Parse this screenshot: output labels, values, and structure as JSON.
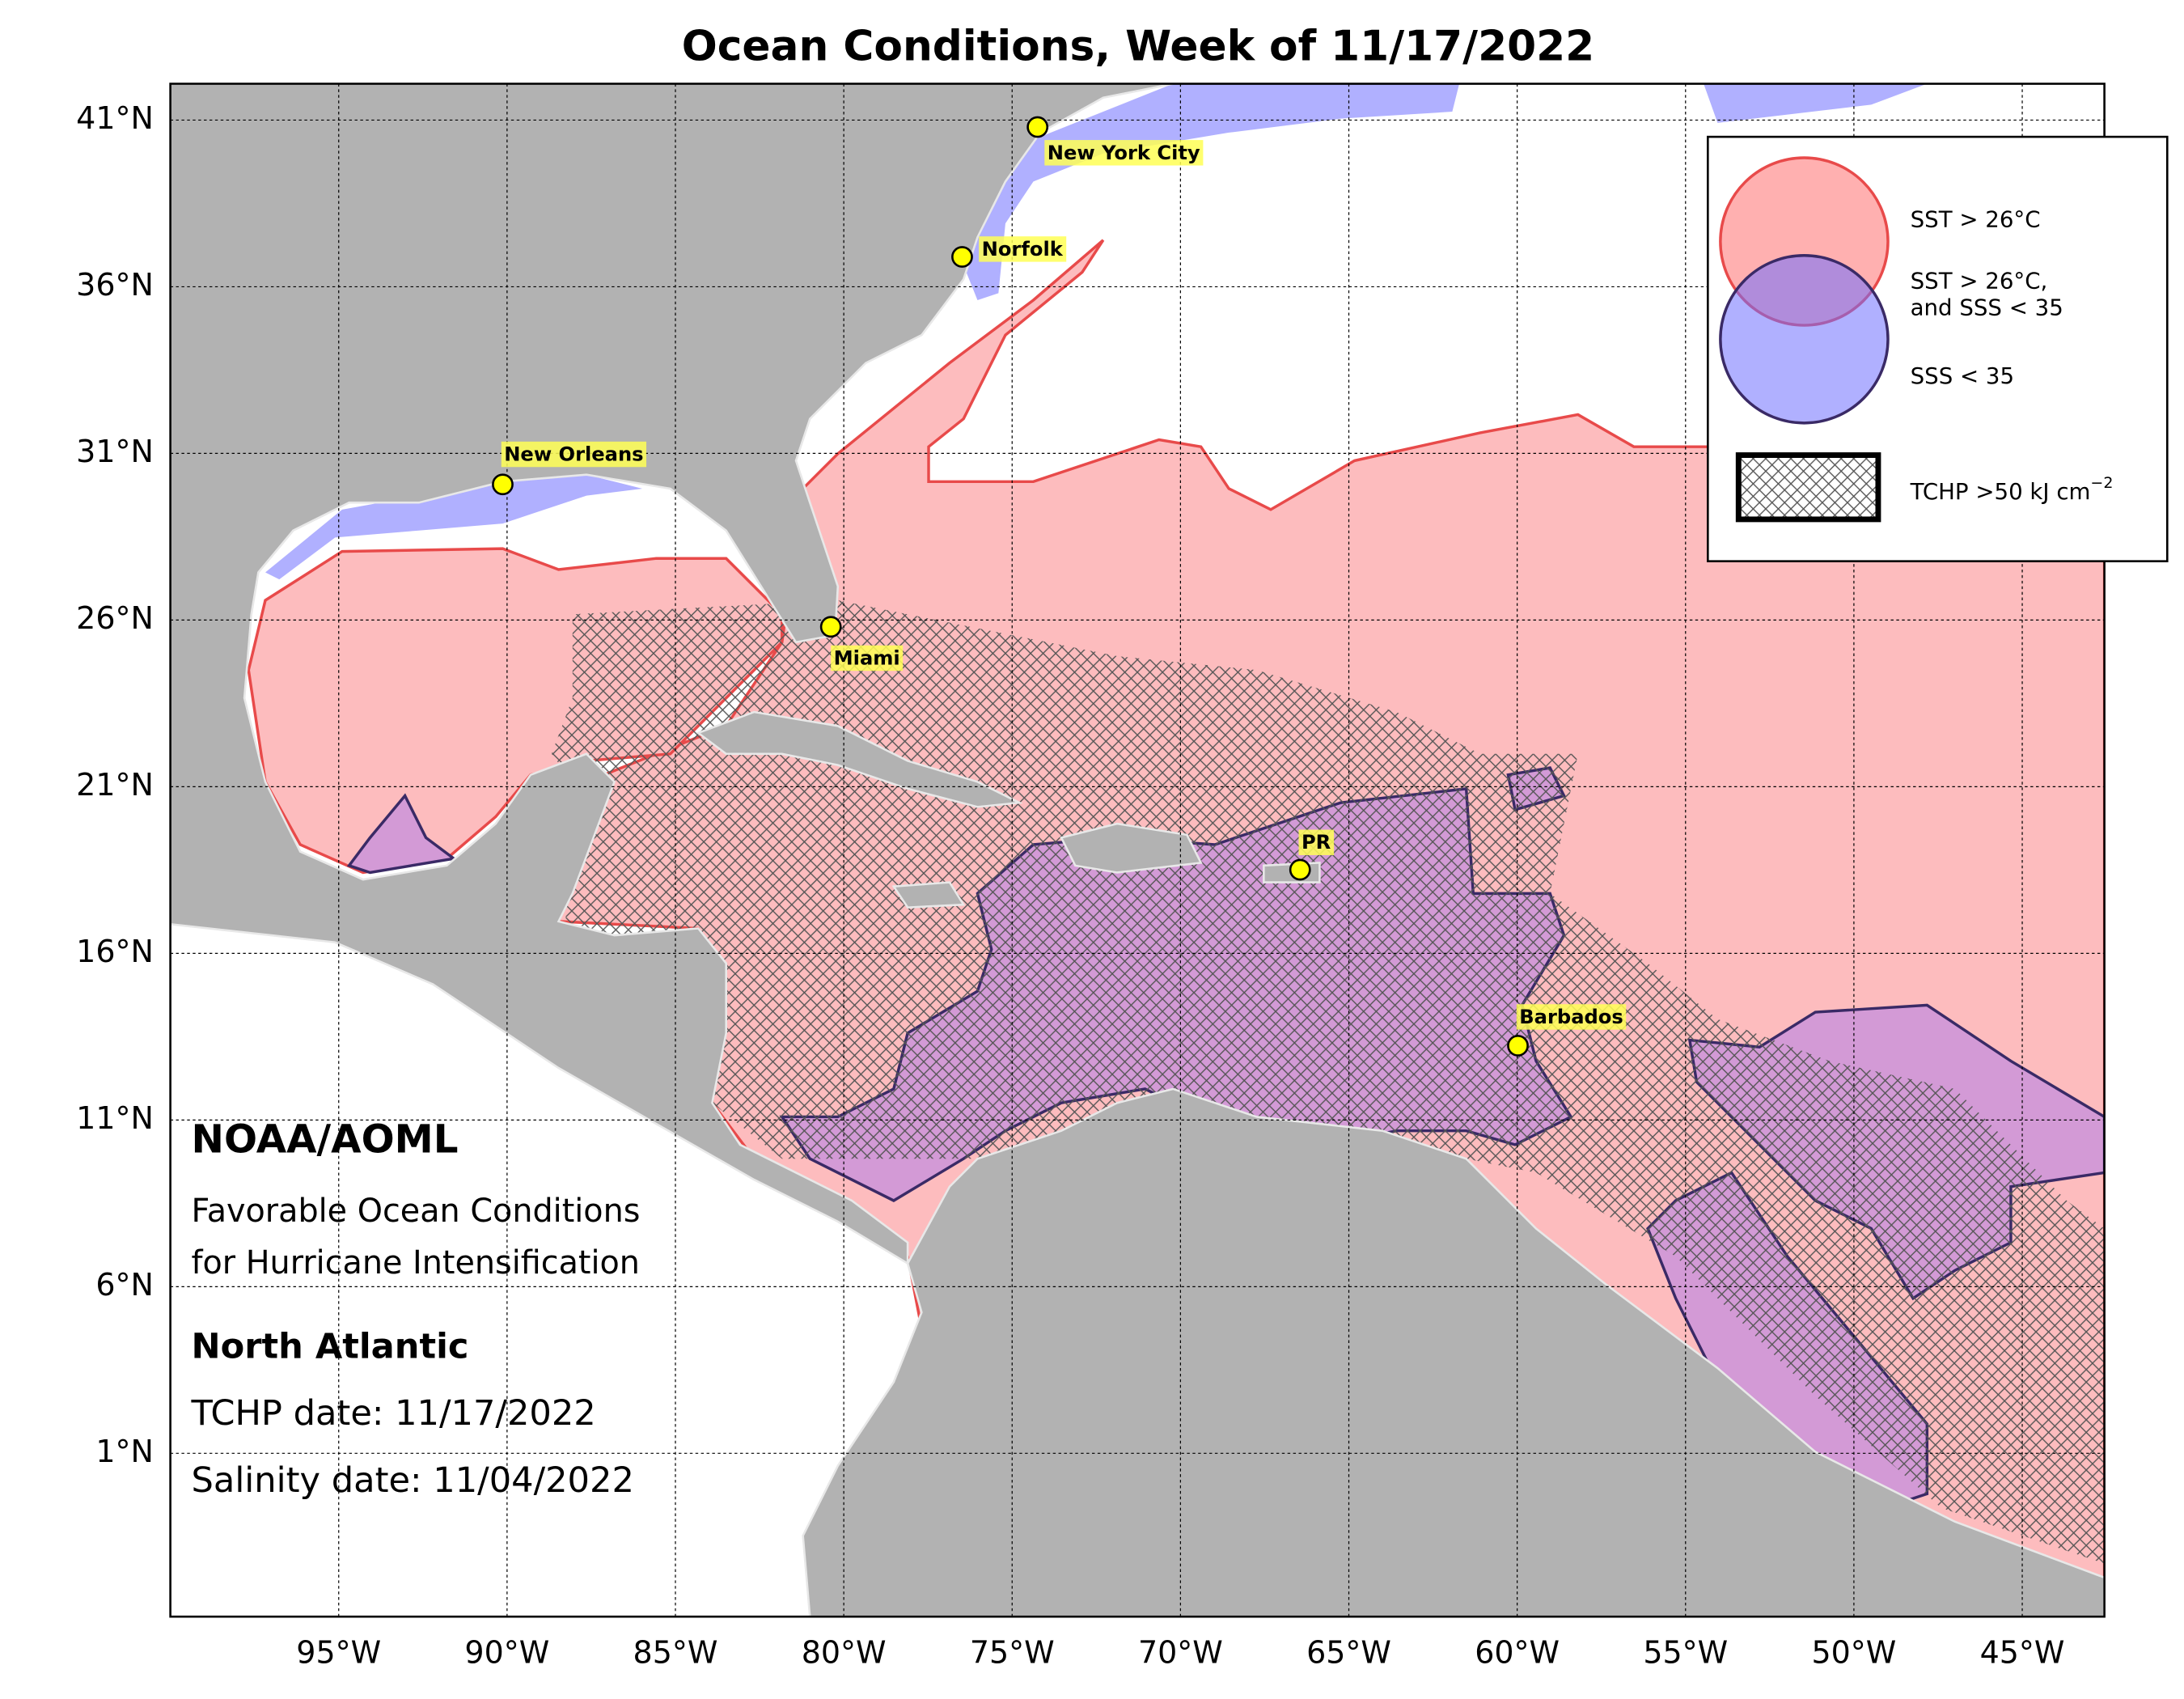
{
  "title": "Ocean Conditions, Week of 11/17/2022",
  "lat_ticks": [
    {
      "value": 41,
      "label": "41°N"
    },
    {
      "value": 36,
      "label": "36°N"
    },
    {
      "value": 31,
      "label": "31°N"
    },
    {
      "value": 26,
      "label": "26°N"
    },
    {
      "value": 21,
      "label": "21°N"
    },
    {
      "value": 16,
      "label": "16°N"
    },
    {
      "value": 11,
      "label": "11°N"
    },
    {
      "value": 6,
      "label": "6°N"
    },
    {
      "value": 1,
      "label": "1°N"
    }
  ],
  "lon_ticks": [
    {
      "value": -95,
      "label": "95°W"
    },
    {
      "value": -90,
      "label": "90°W"
    },
    {
      "value": -85,
      "label": "85°W"
    },
    {
      "value": -80,
      "label": "80°W"
    },
    {
      "value": -75,
      "label": "75°W"
    },
    {
      "value": -70,
      "label": "70°W"
    },
    {
      "value": -65,
      "label": "65°W"
    },
    {
      "value": -60,
      "label": "60°W"
    },
    {
      "value": -55,
      "label": "55°W"
    },
    {
      "value": -50,
      "label": "50°W"
    },
    {
      "value": -45,
      "label": "45°W"
    }
  ],
  "cities": [
    "New York City",
    "Norfolk",
    "New Orleans",
    "Miami",
    "PR",
    "Barbados"
  ],
  "legend": {
    "sst": "SST > 26°C",
    "both_1": "SST > 26°C,",
    "both_2": "and SSS < 35",
    "sss": "SSS < 35",
    "tchp": {
      "text": "TCHP >50 kJ cm",
      "sup": "−2"
    }
  },
  "info": {
    "org": "NOAA/AOML",
    "desc": [
      "Favorable Ocean Conditions",
      "for Hurricane Intensification"
    ],
    "region": "North Atlantic",
    "tchp_date": "TCHP date: 11/17/2022",
    "salinity_date": "Salinity date: 11/04/2022"
  }
}
